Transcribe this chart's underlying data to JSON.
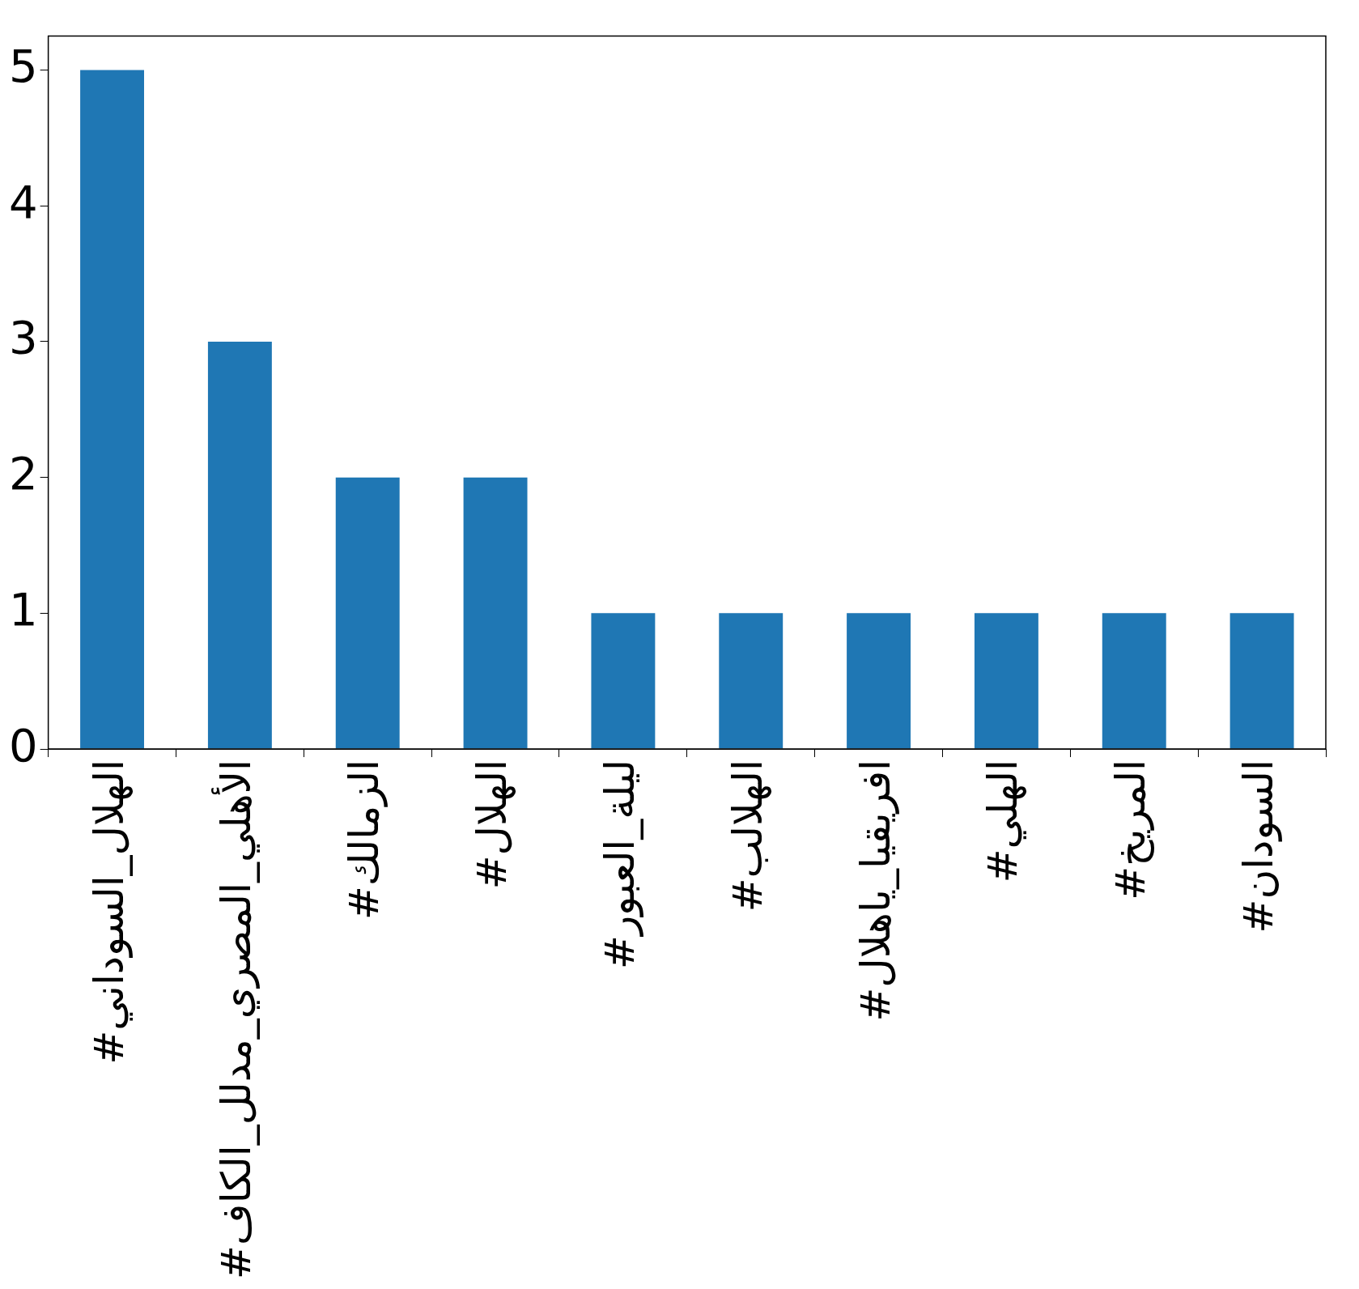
{
  "chart_data": {
    "type": "bar",
    "categories": [
      "#الهلال_السوداني",
      "#الأهلي_المصري_مدلل_الكاف",
      "#الزمالك",
      "#الهلال",
      "#ليلة_العبور",
      "#الهلالب",
      "#افريقيا_ياهلال",
      "#الهلي",
      "#المريخ",
      "#السودان"
    ],
    "values": [
      5,
      3,
      2,
      2,
      1,
      1,
      1,
      1,
      1,
      1
    ],
    "color": "#1f77b4",
    "ylim": [
      0,
      5.25
    ],
    "yticks": [
      0,
      1,
      2,
      3,
      4,
      5
    ],
    "grid": false,
    "legend": false
  }
}
